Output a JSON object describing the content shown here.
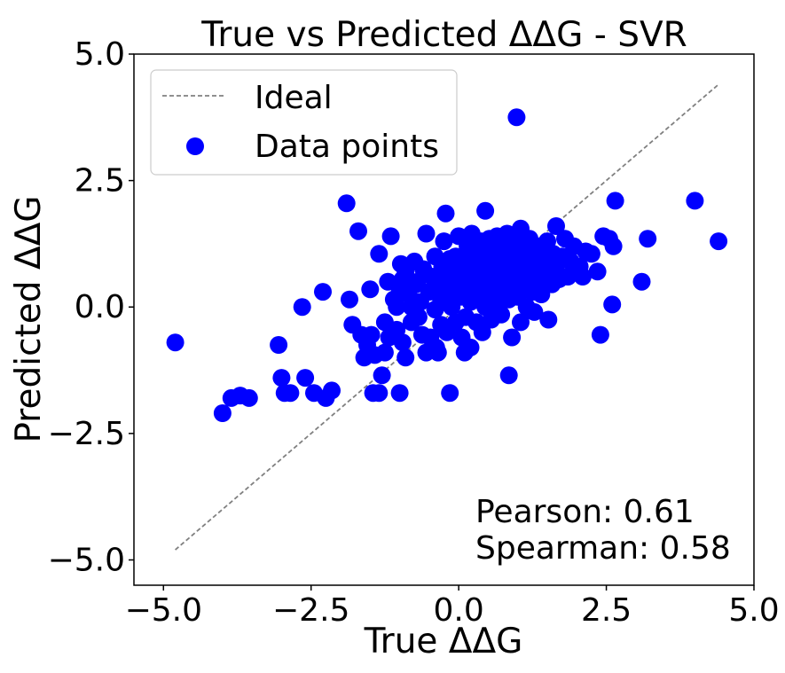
{
  "chart_data": {
    "type": "scatter",
    "title": "True vs Predicted ΔΔG - SVR",
    "xlabel": "True ΔΔG",
    "ylabel": "Predicted ΔΔG",
    "xlim": [
      -5.5,
      5.0
    ],
    "ylim": [
      -5.5,
      5.0
    ],
    "xticks": [
      -5.0,
      -2.5,
      0.0,
      2.5,
      5.0
    ],
    "yticks": [
      -5.0,
      -2.5,
      0.0,
      2.5,
      5.0
    ],
    "xtick_labels": [
      "−5.0",
      "−2.5",
      "0.0",
      "2.5",
      "5.0"
    ],
    "ytick_labels": [
      "−5.0",
      "−2.5",
      "0.0",
      "2.5",
      "5.0"
    ],
    "grid": false,
    "legend_position": "top-left",
    "ideal_line": {
      "name": "Ideal",
      "x": [
        -4.8,
        4.4
      ],
      "y": [
        -4.8,
        4.4
      ],
      "color": "#808080",
      "style": "dashed"
    },
    "series": [
      {
        "name": "Data points",
        "color": "#0000ff",
        "points": [
          [
            -4.8,
            -0.7
          ],
          [
            -4.0,
            -2.1
          ],
          [
            -3.85,
            -1.8
          ],
          [
            -3.7,
            -1.75
          ],
          [
            -3.55,
            -1.8
          ],
          [
            -3.05,
            -0.75
          ],
          [
            -3.0,
            -1.4
          ],
          [
            -2.95,
            -1.7
          ],
          [
            -2.85,
            -1.7
          ],
          [
            -2.65,
            0.0
          ],
          [
            -2.6,
            -1.4
          ],
          [
            -2.45,
            -1.7
          ],
          [
            -2.3,
            0.3
          ],
          [
            -2.25,
            -1.8
          ],
          [
            -2.15,
            -1.65
          ],
          [
            -1.9,
            2.05
          ],
          [
            -1.85,
            0.15
          ],
          [
            -1.8,
            -0.35
          ],
          [
            -1.7,
            1.5
          ],
          [
            -1.65,
            -0.55
          ],
          [
            -1.6,
            -1.0
          ],
          [
            -1.55,
            -0.75
          ],
          [
            -1.5,
            0.35
          ],
          [
            -1.48,
            -0.55
          ],
          [
            -1.45,
            -1.7
          ],
          [
            -1.42,
            -0.95
          ],
          [
            -1.35,
            1.05
          ],
          [
            -1.35,
            -1.7
          ],
          [
            -1.3,
            -1.35
          ],
          [
            -1.25,
            -0.3
          ],
          [
            -1.25,
            -0.9
          ],
          [
            -1.2,
            0.5
          ],
          [
            -1.18,
            -0.6
          ],
          [
            -1.15,
            1.4
          ],
          [
            -1.1,
            0.15
          ],
          [
            -1.05,
            -0.45
          ],
          [
            -1.0,
            0.3
          ],
          [
            -1.0,
            -1.7
          ],
          [
            -0.98,
            0.85
          ],
          [
            -0.95,
            -0.7
          ],
          [
            -0.9,
            -1.0
          ],
          [
            -0.9,
            0.7
          ],
          [
            -0.85,
            0.25
          ],
          [
            -0.8,
            0.0
          ],
          [
            -0.8,
            -0.3
          ],
          [
            -0.75,
            0.9
          ],
          [
            -0.7,
            0.5
          ],
          [
            -0.68,
            -0.2
          ],
          [
            -0.65,
            0.1
          ],
          [
            -0.6,
            0.75
          ],
          [
            -0.55,
            1.45
          ],
          [
            -0.55,
            -0.9
          ],
          [
            -0.5,
            0.3
          ],
          [
            -0.48,
            -0.6
          ],
          [
            -0.45,
            0.6
          ],
          [
            -0.4,
            1.0
          ],
          [
            -0.4,
            -0.05
          ],
          [
            -0.38,
            -0.8
          ],
          [
            -0.35,
            0.4
          ],
          [
            -0.3,
            -0.35
          ],
          [
            -0.28,
            0.8
          ],
          [
            -0.25,
            0.15
          ],
          [
            -0.25,
            1.3
          ],
          [
            -0.22,
            1.85
          ],
          [
            -0.2,
            -0.5
          ],
          [
            -0.18,
            0.55
          ],
          [
            -0.15,
            -1.7
          ],
          [
            -0.12,
            0.0
          ],
          [
            -0.1,
            0.35
          ],
          [
            -0.05,
            1.0
          ],
          [
            -0.05,
            -0.3
          ],
          [
            0.0,
            0.7
          ],
          [
            0.0,
            1.4
          ],
          [
            0.02,
            0.2
          ],
          [
            0.05,
            -0.6
          ],
          [
            0.08,
            0.9
          ],
          [
            0.1,
            0.45
          ],
          [
            0.12,
            -0.2
          ],
          [
            0.15,
            1.2
          ],
          [
            0.18,
            0.6
          ],
          [
            0.2,
            0.1
          ],
          [
            0.2,
            -0.8
          ],
          [
            0.22,
            1.45
          ],
          [
            0.25,
            0.35
          ],
          [
            0.28,
            0.8
          ],
          [
            0.3,
            -0.3
          ],
          [
            0.3,
            1.0
          ],
          [
            0.33,
            0.55
          ],
          [
            0.35,
            0.2
          ],
          [
            0.38,
            1.3
          ],
          [
            0.4,
            -0.5
          ],
          [
            0.42,
            0.7
          ],
          [
            0.45,
            1.9
          ],
          [
            0.45,
            0.0
          ],
          [
            0.48,
            0.45
          ],
          [
            0.5,
            0.95
          ],
          [
            0.52,
            1.35
          ],
          [
            0.55,
            0.25
          ],
          [
            0.55,
            -0.25
          ],
          [
            0.58,
            0.65
          ],
          [
            0.6,
            1.1
          ],
          [
            0.62,
            0.4
          ],
          [
            0.65,
            0.0
          ],
          [
            0.65,
            1.4
          ],
          [
            0.68,
            0.8
          ],
          [
            0.7,
            0.55
          ],
          [
            0.72,
            -0.15
          ],
          [
            0.75,
            1.2
          ],
          [
            0.75,
            0.3
          ],
          [
            0.78,
            0.9
          ],
          [
            0.8,
            0.6
          ],
          [
            0.82,
            1.45
          ],
          [
            0.85,
            -1.35
          ],
          [
            0.85,
            0.15
          ],
          [
            0.88,
            0.75
          ],
          [
            0.9,
            -0.6
          ],
          [
            0.9,
            1.0
          ],
          [
            0.92,
            0.4
          ],
          [
            0.95,
            1.3
          ],
          [
            0.98,
            3.75
          ],
          [
            0.98,
            0.65
          ],
          [
            1.0,
            0.2
          ],
          [
            1.02,
            0.9
          ],
          [
            1.05,
            1.55
          ],
          [
            1.05,
            -0.3
          ],
          [
            1.08,
            0.5
          ],
          [
            1.1,
            1.15
          ],
          [
            1.12,
            0.8
          ],
          [
            1.15,
            0.0
          ],
          [
            1.18,
            0.6
          ],
          [
            1.2,
            1.35
          ],
          [
            1.22,
            0.35
          ],
          [
            1.25,
            0.95
          ],
          [
            1.28,
            -0.1
          ],
          [
            1.3,
            0.7
          ],
          [
            1.32,
            1.2
          ],
          [
            1.35,
            0.5
          ],
          [
            1.38,
            0.85
          ],
          [
            1.4,
            0.25
          ],
          [
            1.42,
            1.1
          ],
          [
            1.45,
            0.6
          ],
          [
            1.48,
            0.95
          ],
          [
            1.5,
            1.3
          ],
          [
            1.52,
            -0.25
          ],
          [
            1.55,
            0.75
          ],
          [
            1.58,
            0.45
          ],
          [
            1.6,
            1.05
          ],
          [
            1.65,
            1.6
          ],
          [
            1.65,
            0.8
          ],
          [
            1.7,
            0.55
          ],
          [
            1.75,
            1.0
          ],
          [
            1.8,
            1.35
          ],
          [
            1.85,
            0.6
          ],
          [
            1.9,
            0.9
          ],
          [
            1.95,
            1.2
          ],
          [
            2.05,
            0.8
          ],
          [
            2.1,
            0.6
          ],
          [
            2.15,
            1.1
          ],
          [
            2.25,
            1.05
          ],
          [
            2.35,
            0.7
          ],
          [
            2.4,
            -0.55
          ],
          [
            2.45,
            1.4
          ],
          [
            2.55,
            1.35
          ],
          [
            2.6,
            0.05
          ],
          [
            2.62,
            1.2
          ],
          [
            2.65,
            2.1
          ],
          [
            3.1,
            0.5
          ],
          [
            3.2,
            1.35
          ],
          [
            4.0,
            2.1
          ],
          [
            4.4,
            1.3
          ],
          [
            -0.62,
            -0.55
          ],
          [
            -0.35,
            -0.9
          ],
          [
            0.1,
            -0.9
          ],
          [
            -1.05,
            0.0
          ],
          [
            -0.72,
            0.45
          ],
          [
            0.6,
            0.9
          ],
          [
            1.25,
            0.3
          ],
          [
            -0.1,
            0.6
          ],
          [
            0.35,
            0.75
          ],
          [
            0.85,
            1.15
          ],
          [
            -0.95,
            0.55
          ],
          [
            -0.15,
            0.95
          ],
          [
            0.45,
            1.0
          ],
          [
            1.05,
            0.35
          ],
          [
            -0.3,
            0.15
          ]
        ]
      }
    ],
    "annotations": [
      "Pearson: 0.61",
      "Spearman: 0.58"
    ]
  }
}
